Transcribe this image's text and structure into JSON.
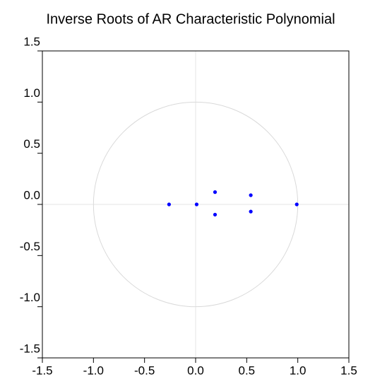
{
  "chart_data": {
    "type": "scatter",
    "title": "Inverse Roots of AR Characteristic Polynomial",
    "x": [
      -0.26,
      0.01,
      0.19,
      0.19,
      0.54,
      0.54,
      0.99
    ],
    "values": [
      0,
      0,
      0.12,
      -0.1,
      0.09,
      -0.07,
      0
    ],
    "color": "#0000ff",
    "xlim": [
      -1.5,
      1.5
    ],
    "ylim": [
      -1.5,
      1.5
    ],
    "xticks": [
      {
        "value": -1.5,
        "label": "-1.5"
      },
      {
        "value": -1,
        "label": "-1.0"
      },
      {
        "value": -0.5,
        "label": "-0.5"
      },
      {
        "value": 0,
        "label": "0.0"
      },
      {
        "value": 0.5,
        "label": "0.5"
      },
      {
        "value": 1,
        "label": "1.0"
      },
      {
        "value": 1.5,
        "label": "1.5"
      }
    ],
    "yticks": [
      {
        "value": -1.5,
        "label": "-1.5"
      },
      {
        "value": -1,
        "label": "-1.0"
      },
      {
        "value": -0.5,
        "label": "-0.5"
      },
      {
        "value": 0,
        "label": "0.0"
      },
      {
        "value": 0.5,
        "label": "0.5"
      },
      {
        "value": 1,
        "label": "1.0"
      },
      {
        "value": 1.5,
        "label": "1.5"
      }
    ],
    "unit_circle": true
  }
}
